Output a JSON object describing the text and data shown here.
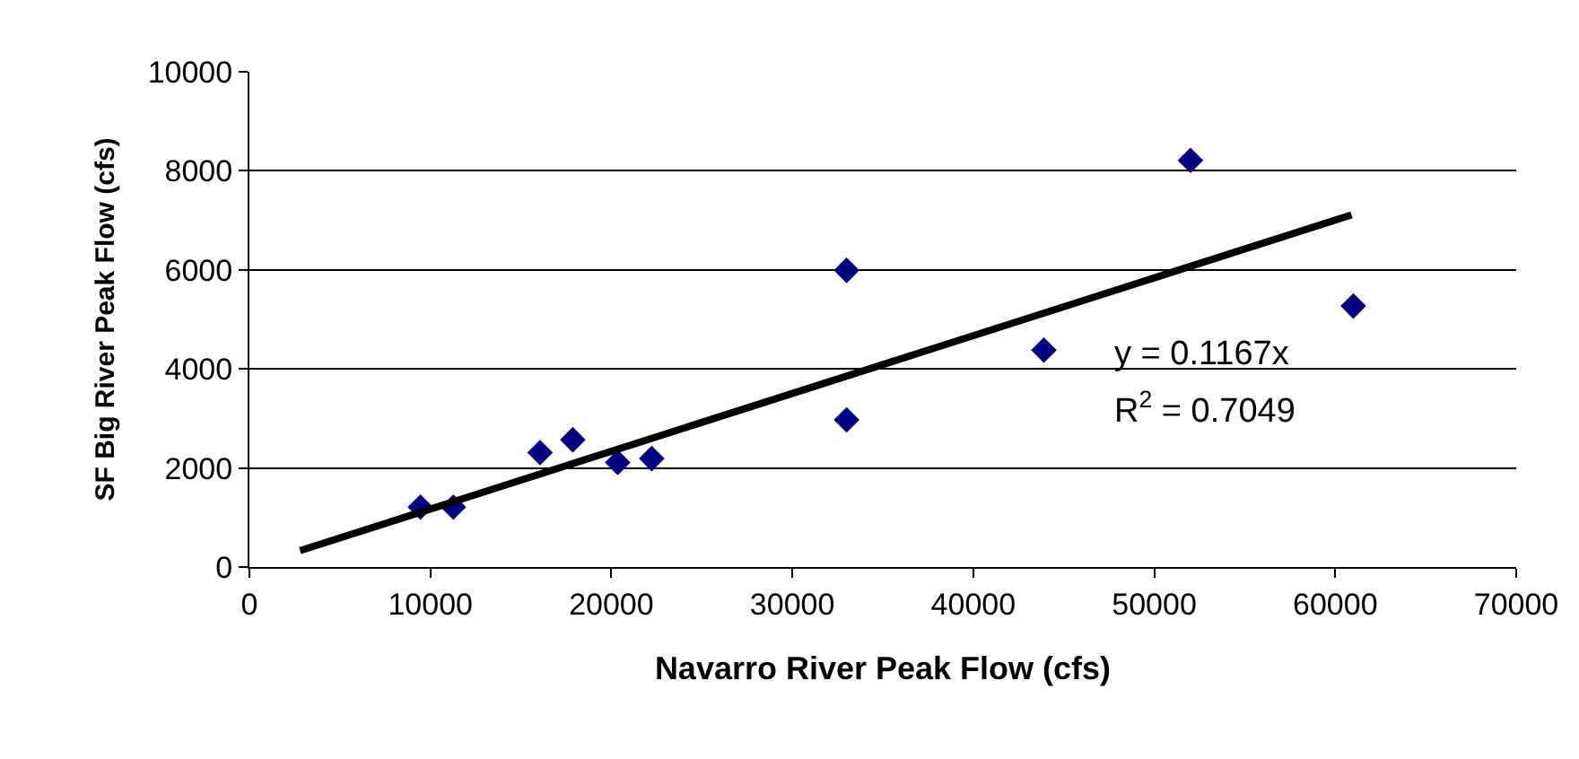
{
  "chart_data": {
    "type": "scatter",
    "xlabel": "Navarro River Peak Flow (cfs)",
    "ylabel": "SF Big River Peak Flow (cfs)",
    "series": [
      {
        "color": "#000080",
        "marker": "diamond",
        "x": [
          9450,
          11270,
          16060,
          17870,
          20350,
          22230,
          33000,
          33000,
          43900,
          52000,
          61000
        ],
        "values": [
          1210,
          1210,
          2310,
          2570,
          2110,
          2190,
          5990,
          2970,
          4380,
          8210,
          5270
        ]
      },
      {
        "type": "line",
        "color": "#000000",
        "marker": "none",
        "x": [
          2800,
          60900
        ],
        "values": [
          330,
          7110
        ]
      }
    ],
    "annotations": [
      "y = 0.1167x",
      "R$^{2}$ = 0.7049"
    ],
    "xlim": [
      0,
      70000
    ],
    "xticks": [
      0,
      10000,
      20000,
      30000,
      40000,
      50000,
      60000,
      70000
    ],
    "ylim": [
      0,
      10000
    ],
    "yticks": [
      0,
      2000,
      4000,
      6000,
      8000,
      10000
    ],
    "grid": "y"
  }
}
